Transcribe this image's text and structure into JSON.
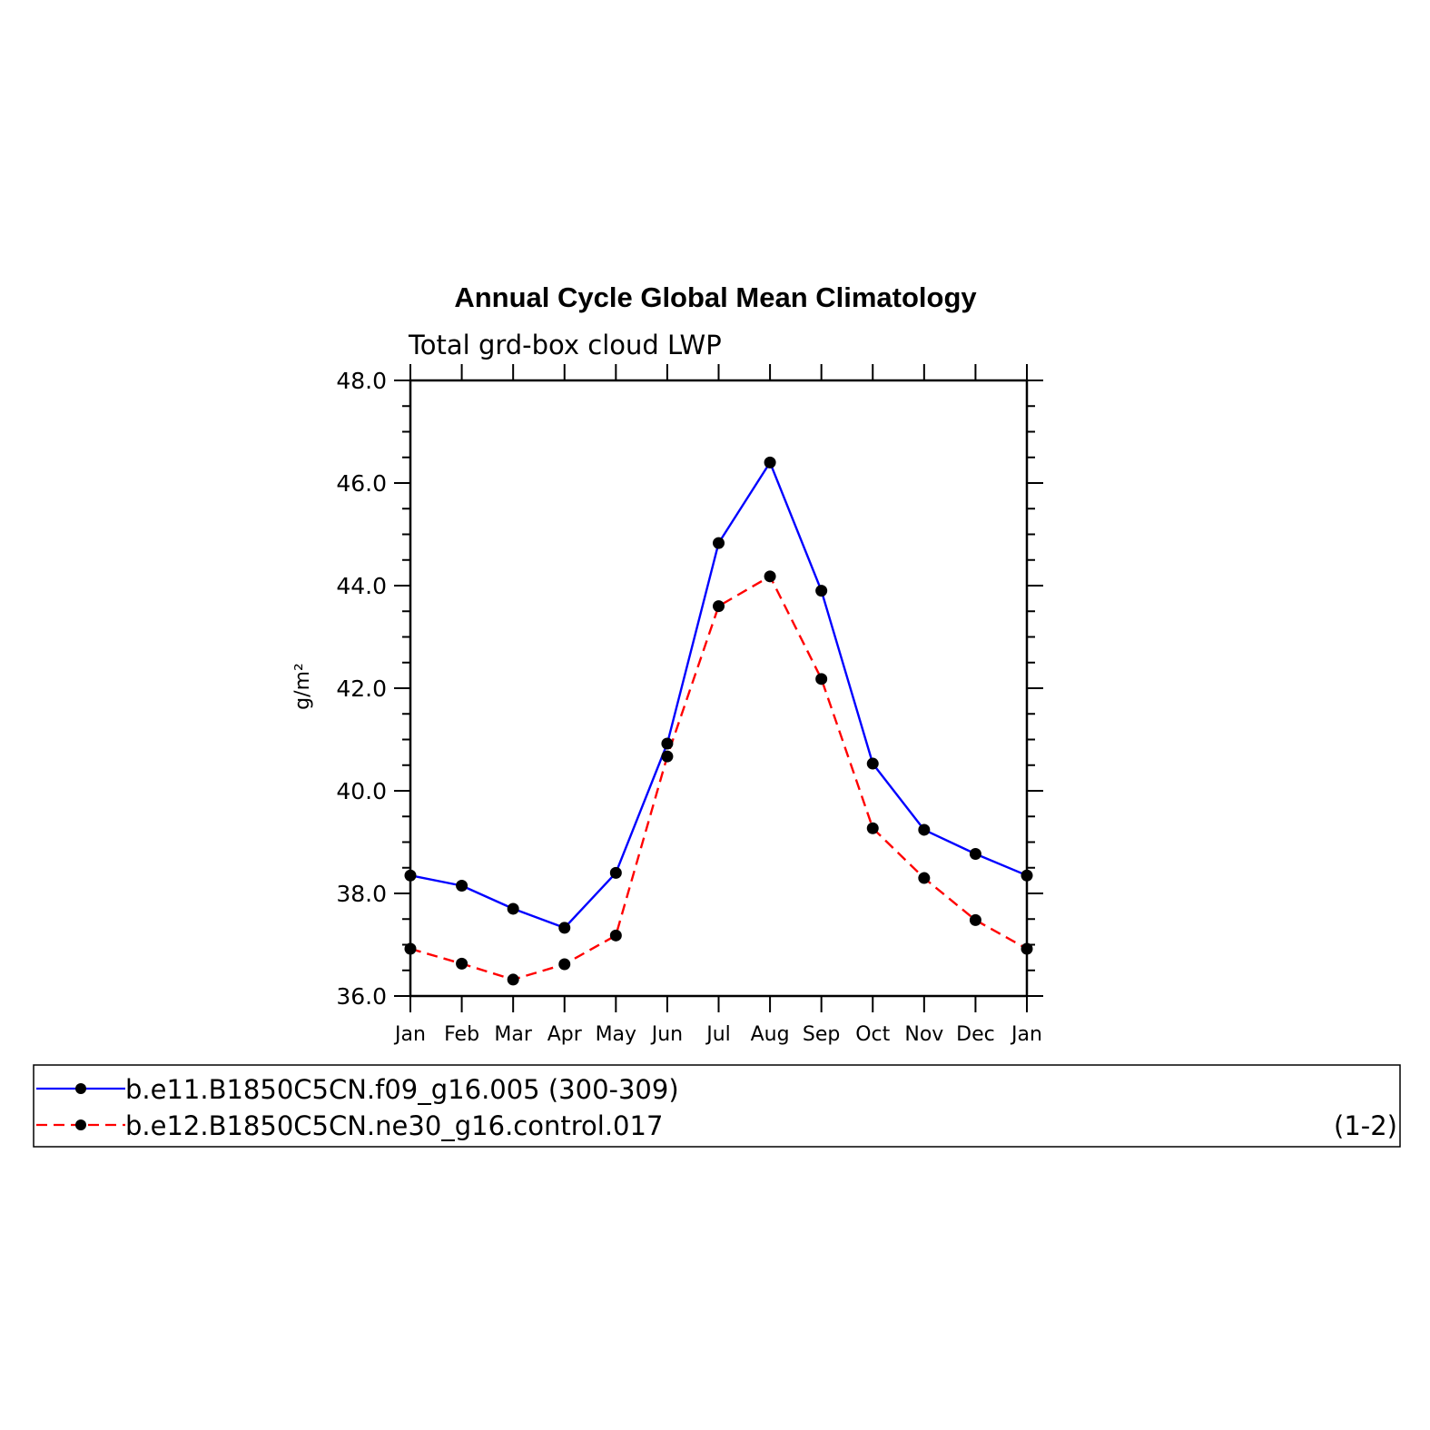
{
  "chart_data": {
    "type": "line",
    "title": "Annual Cycle Global Mean Climatology",
    "subtitle": "Total grd-box cloud LWP",
    "ylabel": "g/m²",
    "xlabel": "",
    "ylim": [
      36.0,
      48.0
    ],
    "yticks": [
      "36.0",
      "38.0",
      "40.0",
      "42.0",
      "44.0",
      "46.0",
      "48.0"
    ],
    "categories": [
      "Jan",
      "Feb",
      "Mar",
      "Apr",
      "May",
      "Jun",
      "Jul",
      "Aug",
      "Sep",
      "Oct",
      "Nov",
      "Dec",
      "Jan"
    ],
    "series": [
      {
        "name": "b.e11.B1850C5CN.f09_g16.005 (300-309)",
        "color": "#0000ff",
        "style": "solid",
        "values": [
          38.35,
          38.15,
          37.7,
          37.33,
          38.4,
          40.92,
          44.83,
          46.4,
          43.9,
          40.53,
          39.24,
          38.77,
          38.35
        ]
      },
      {
        "name": "b.e12.B1850C5CN.ne30_g16.control.017",
        "color": "#ff0000",
        "style": "dashed",
        "values": [
          36.92,
          36.63,
          36.32,
          36.62,
          37.18,
          40.67,
          43.6,
          44.18,
          42.18,
          39.27,
          38.3,
          37.48,
          36.92
        ]
      }
    ],
    "legend_position": "bottom",
    "annotation": "(1-2)"
  }
}
